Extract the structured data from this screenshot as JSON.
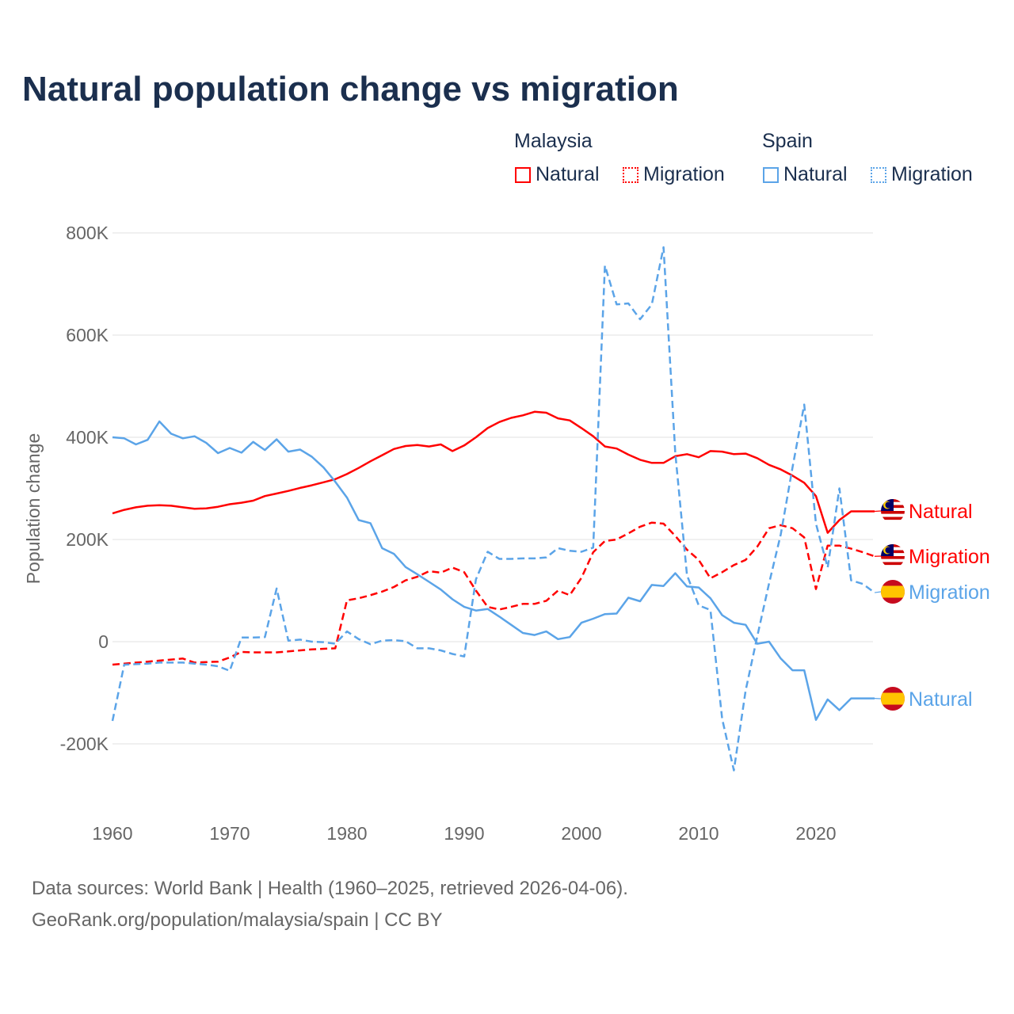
{
  "title": "Natural population change vs migration",
  "legend": {
    "groups": [
      {
        "name": "Malaysia",
        "items": [
          {
            "label": "Natural",
            "style": "solid",
            "color": "#ff0000"
          },
          {
            "label": "Migration",
            "style": "dotted",
            "color": "#ff0000"
          }
        ]
      },
      {
        "name": "Spain",
        "items": [
          {
            "label": "Natural",
            "style": "solid",
            "color": "#5ba4e8"
          },
          {
            "label": "Migration",
            "style": "dotted",
            "color": "#5ba4e8"
          }
        ]
      }
    ]
  },
  "footer": {
    "line1": "Data sources: World Bank | Health (1960–2025, retrieved 2026-04-06).",
    "line2": "GeoRank.org/population/malaysia/spain | CC BY"
  },
  "chart_data": {
    "type": "line",
    "title": "Natural population change vs migration",
    "xlabel": "",
    "ylabel": "Population change",
    "xlim": [
      1960,
      2025
    ],
    "ylim": [
      -300000,
      800000
    ],
    "yticks": [
      {
        "v": 800000,
        "label": "800K"
      },
      {
        "v": 600000,
        "label": "600K"
      },
      {
        "v": 400000,
        "label": "400K"
      },
      {
        "v": 200000,
        "label": "200K"
      },
      {
        "v": 0,
        "label": "0"
      },
      {
        "v": -200000,
        "label": "-200K"
      }
    ],
    "xticks": [
      {
        "v": 1960,
        "label": "1960"
      },
      {
        "v": 1970,
        "label": "1970"
      },
      {
        "v": 1980,
        "label": "1980"
      },
      {
        "v": 1990,
        "label": "1990"
      },
      {
        "v": 2000,
        "label": "2000"
      },
      {
        "v": 2010,
        "label": "2010"
      },
      {
        "v": 2020,
        "label": "2020"
      }
    ],
    "grid": true,
    "start_year": 1960,
    "series": [
      {
        "name": "Malaysia Natural",
        "label": "Natural",
        "country": "Malaysia",
        "color": "#ff0000",
        "dashed": false,
        "values_k": [
          251,
          258,
          263,
          266,
          267,
          266,
          263,
          260,
          261,
          264,
          269,
          272,
          276,
          285,
          290,
          295,
          301,
          306,
          312,
          318,
          328,
          340,
          353,
          365,
          377,
          383,
          385,
          382,
          386,
          373,
          384,
          400,
          418,
          430,
          438,
          443,
          450,
          448,
          437,
          433,
          418,
          402,
          382,
          378,
          366,
          356,
          350,
          350,
          363,
          367,
          361,
          373,
          372,
          367,
          368,
          359,
          346,
          337,
          325,
          311,
          285,
          213,
          238,
          255,
          255,
          255
        ]
      },
      {
        "name": "Malaysia Migration",
        "label": "Migration",
        "country": "Malaysia",
        "color": "#ff0000",
        "dashed": true,
        "values_k": [
          -45,
          -43,
          -41,
          -39,
          -37,
          -35,
          -33,
          -41,
          -40,
          -39,
          -31,
          -20,
          -21,
          -21,
          -21,
          -19,
          -17,
          -15,
          -14,
          -13,
          81,
          85,
          91,
          98,
          107,
          120,
          127,
          138,
          135,
          145,
          136,
          100,
          68,
          63,
          68,
          74,
          74,
          80,
          100,
          91,
          125,
          175,
          197,
          200,
          212,
          225,
          233,
          231,
          207,
          180,
          160,
          124,
          136,
          150,
          160,
          186,
          222,
          228,
          222,
          204,
          103,
          188,
          188,
          182,
          175,
          167
        ]
      },
      {
        "name": "Spain Migration",
        "label": "Migration",
        "country": "Spain",
        "color": "#5ba4e8",
        "dashed": true,
        "values_k": [
          -155,
          -45,
          -44,
          -43,
          -41,
          -41,
          -41,
          -43,
          -45,
          -48,
          -57,
          8,
          8,
          9,
          104,
          2,
          4,
          0,
          -1,
          -4,
          20,
          5,
          -5,
          2,
          3,
          1,
          -13,
          -13,
          -17,
          -24,
          -29,
          122,
          176,
          162,
          162,
          163,
          163,
          165,
          183,
          178,
          176,
          184,
          736,
          660,
          662,
          631,
          660,
          772,
          370,
          130,
          71,
          62,
          -151,
          -252,
          -96,
          11,
          114,
          210,
          341,
          464,
          231,
          145,
          300,
          120,
          113,
          96
        ]
      },
      {
        "name": "Spain Natural",
        "label": "Natural",
        "country": "Spain",
        "color": "#5ba4e8",
        "dashed": false,
        "values_k": [
          400,
          398,
          386,
          395,
          431,
          407,
          398,
          402,
          389,
          369,
          379,
          370,
          391,
          375,
          396,
          372,
          376,
          362,
          341,
          313,
          282,
          238,
          232,
          183,
          172,
          146,
          132,
          117,
          102,
          83,
          68,
          61,
          64,
          49,
          33,
          17,
          13,
          20,
          5,
          9,
          37,
          45,
          54,
          55,
          86,
          79,
          111,
          109,
          134,
          108,
          106,
          85,
          52,
          37,
          33,
          -4,
          0,
          -33,
          -56,
          -56,
          -153,
          -113,
          -134,
          -111,
          -111,
          -111
        ]
      }
    ]
  }
}
